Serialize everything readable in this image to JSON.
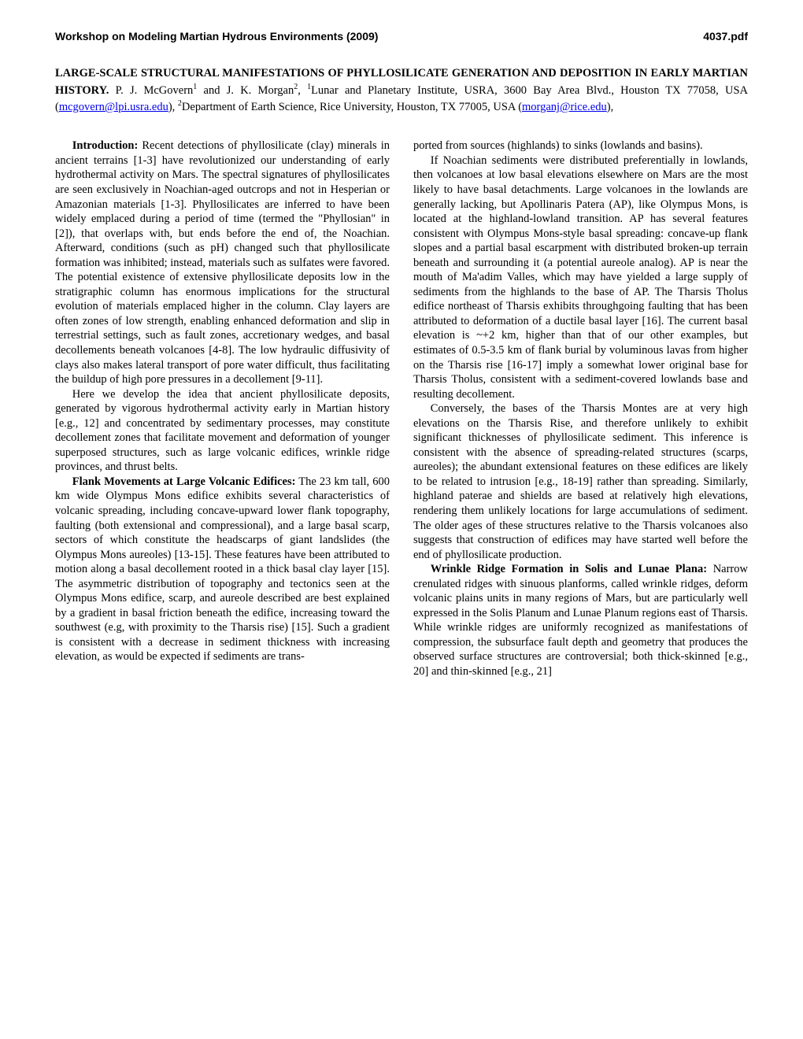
{
  "header": {
    "left": "Workshop on Modeling Martian Hydrous Environments (2009)",
    "right": "4037.pdf"
  },
  "title": {
    "main": "LARGE-SCALE STRUCTURAL MANIFESTATIONS OF PHYLLOSILICATE GENERATION AND DEPOSITION IN EARLY MARTIAN HISTORY.",
    "authors_prefix": "  P. J. McGovern",
    "sup1": "1",
    "authors_mid": " and J. K. Morgan",
    "sup2": "2",
    "affil_comma": ", ",
    "sup1b": "1",
    "affil1_text": "Lunar and Planetary Institute, USRA, 3600 Bay Area Blvd., Houston TX 77058, USA (",
    "link1": "mcgovern@lpi.usra.edu",
    "affil1_close": "), ",
    "sup2b": "2",
    "affil2_text": "Department of Earth Science, Rice University, Houston, TX 77005, USA (",
    "link2": "morganj@rice.edu",
    "affil2_close": "),"
  },
  "left_col": {
    "p1_heading": "Introduction:",
    "p1": " Recent detections of phyllosilicate (clay) minerals in ancient terrains [1-3] have revolutionized our understanding of early hydrothermal activity on Mars. The spectral signatures of phyllosilicates are seen exclusively in Noachian-aged outcrops and not in Hesperian or Amazonian materials [1-3]. Phyllosilicates are inferred to have been widely emplaced during a period of time (termed the \"Phyllosian\" in [2]), that overlaps with, but ends before the end of, the Noachian. Afterward, conditions (such as pH) changed such that phyllosilicate formation was inhibited; instead, materials such as sulfates were favored. The potential existence of extensive phyllosilicate deposits low in the stratigraphic column has enormous implications for the structural evolution of materials emplaced higher in the column. Clay layers are often zones of low strength, enabling enhanced deformation and slip in terrestrial settings, such as fault zones, accretionary wedges, and basal decollements beneath volcanoes [4-8]. The low hydraulic diffusivity of clays also makes lateral transport of pore water difficult, thus facilitating the buildup of high pore pressures in a decollement [9-11].",
    "p2": "Here we develop the idea that ancient phyllosilicate deposits, generated by vigorous hydrothermal activity early in Martian history [e.g., 12] and concentrated by sedimentary processes, may constitute decollement zones that facilitate movement and deformation of younger superposed structures, such as large volcanic edifices, wrinkle ridge provinces, and thrust belts.",
    "p3_heading": "Flank Movements at Large Volcanic Edifices:",
    "p3": " The 23 km tall, 600 km wide Olympus Mons edifice exhibits several characteristics of volcanic spreading, including concave-upward lower flank topography, faulting (both extensional and compressional), and a large basal scarp, sectors of which constitute the headscarps of giant landslides (the Olympus Mons aureoles) [13-15]. These features have been attributed to motion along a basal decollement rooted in a thick basal clay layer [15]. The asymmetric distribution of topography and tectonics seen at the Olympus Mons edifice, scarp, and aureole described are best explained by a gradient in basal friction beneath the edifice, increasing toward the southwest (e.g, with proximity to the Tharsis rise) [15]. Such a gradient is consistent with a decrease in sediment thickness with increasing elevation, as would be expected if sediments are trans-"
  },
  "right_col": {
    "p1": "ported from sources (highlands) to sinks (lowlands and basins).",
    "p2": "If Noachian sediments were distributed preferentially in lowlands, then volcanoes at low basal elevations elsewhere on Mars are the most likely to have basal detachments. Large volcanoes in the lowlands are generally lacking, but Apollinaris Patera (AP), like Olympus Mons, is located at the highland-lowland transition. AP has several features consistent with Olympus Mons-style basal spreading: concave-up flank slopes and a partial basal escarpment with distributed broken-up terrain beneath and surrounding it (a potential aureole analog). AP is near the mouth of Ma'adim Valles, which may have yielded a large supply of sediments from the highlands to the base of AP. The Tharsis Tholus edifice northeast of Tharsis exhibits throughgoing faulting that has been attributed to deformation of a ductile basal layer [16]. The current basal elevation is ~+2 km, higher than that of our other examples, but estimates of 0.5-3.5 km of flank burial by voluminous lavas from higher on the Tharsis rise [16-17] imply a somewhat lower original base for Tharsis Tholus, consistent with a sediment-covered lowlands base and resulting decollement.",
    "p3": "Conversely, the bases of the Tharsis Montes are at very high elevations on the Tharsis Rise, and therefore unlikely to exhibit significant thicknesses of phyllosilicate sediment. This inference is consistent with the absence of spreading-related structures (scarps, aureoles); the abundant extensional features on these edifices are likely to be related to intrusion [e.g., 18-19] rather than spreading. Similarly, highland paterae and shields are based at relatively high elevations, rendering them unlikely locations for large accumulations of sediment. The older ages of these structures relative to the Tharsis volcanoes also suggests that construction of edifices may have started well before the end of phyllosilicate production.",
    "p4_heading": "Wrinkle Ridge Formation in Solis and Lunae Plana:",
    "p4": "  Narrow crenulated ridges with sinuous planforms, called wrinkle ridges, deform volcanic plains units in many regions of Mars, but are particularly well expressed in the Solis Planum and Lunae Planum regions east of Tharsis. While wrinkle ridges are uniformly recognized as manifestations of compression, the subsurface fault depth and geometry that produces the observed surface structures are controversial; both thick-skinned [e.g., 20] and thin-skinned [e.g., 21]"
  }
}
